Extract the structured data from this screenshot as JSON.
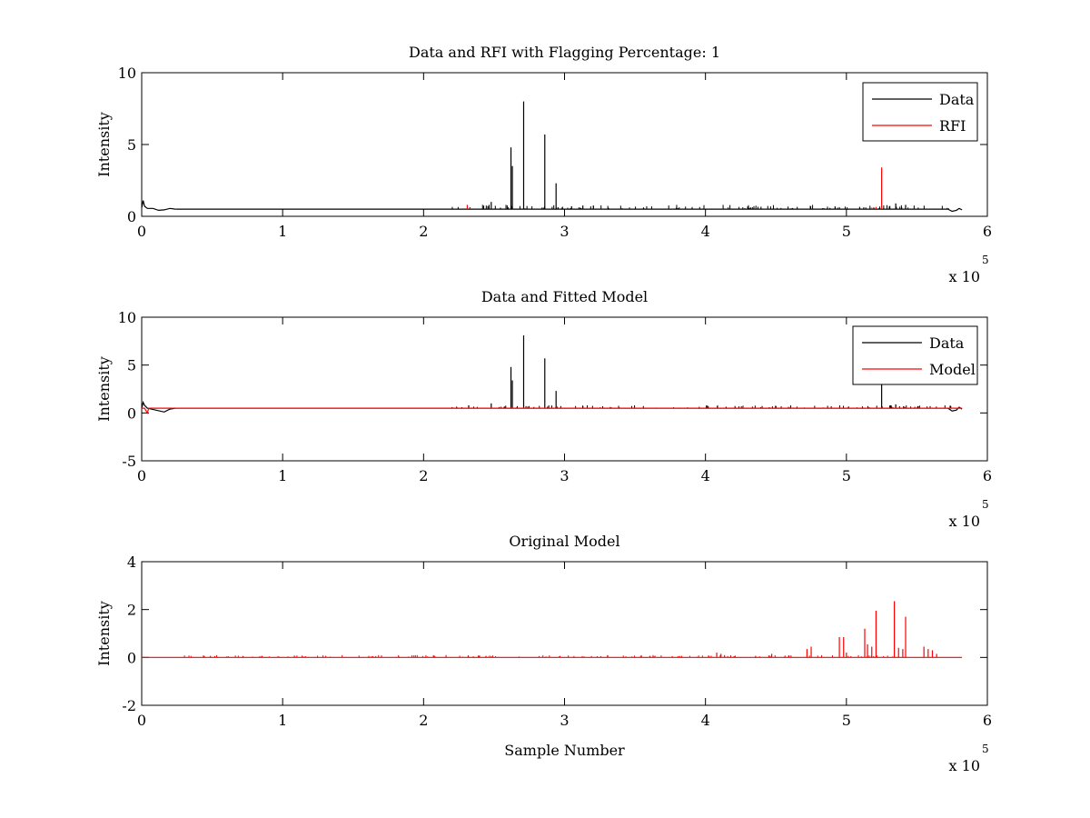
{
  "chart_data": [
    {
      "type": "line",
      "title": "Data and RFI with Flagging Percentage: 1",
      "xlabel": "",
      "ylabel": "Intensity",
      "xlim": [
        0,
        6
      ],
      "ylim": [
        0,
        10
      ],
      "xticks": [
        "0",
        "1",
        "2",
        "3",
        "4",
        "5",
        "6"
      ],
      "yticks": [
        "0",
        "5",
        "10"
      ],
      "x_multiplier": "x 10",
      "x_multiplier_exp": "5",
      "legend": {
        "position": "top-right",
        "entries": [
          {
            "label": "Data",
            "color": "#000000"
          },
          {
            "label": "RFI",
            "color": "#ff0000"
          }
        ]
      },
      "baseline": 0.5,
      "series": [
        {
          "name": "Data",
          "color": "#000000",
          "curve": [
            [
              0,
              0.6
            ],
            [
              0.01,
              1.1
            ],
            [
              0.02,
              0.7
            ],
            [
              0.04,
              0.55
            ],
            [
              0.08,
              0.55
            ],
            [
              0.12,
              0.42
            ],
            [
              0.16,
              0.45
            ],
            [
              0.2,
              0.55
            ],
            [
              0.24,
              0.5
            ]
          ],
          "tail_curve": [
            [
              5.72,
              0.5
            ],
            [
              5.75,
              0.35
            ],
            [
              5.78,
              0.42
            ],
            [
              5.8,
              0.55
            ],
            [
              5.82,
              0.45
            ]
          ],
          "spikes": [
            [
              2.48,
              1.0
            ],
            [
              2.62,
              4.8
            ],
            [
              2.63,
              3.5
            ],
            [
              2.71,
              8.0
            ],
            [
              2.86,
              5.7
            ],
            [
              2.94,
              2.3
            ],
            [
              3.05,
              0.7
            ],
            [
              3.13,
              0.75
            ],
            [
              5.35,
              0.9
            ],
            [
              5.42,
              0.8
            ]
          ]
        },
        {
          "name": "RFI",
          "color": "#ff0000",
          "spikes": [
            [
              2.31,
              0.8
            ],
            [
              2.33,
              0.6
            ],
            [
              5.18,
              0.6
            ],
            [
              5.21,
              0.65
            ],
            [
              5.25,
              3.4
            ],
            [
              5.6,
              0.55
            ]
          ]
        }
      ]
    },
    {
      "type": "line",
      "title": "Data and Fitted Model",
      "xlabel": "",
      "ylabel": "Intensity",
      "xlim": [
        0,
        6
      ],
      "ylim": [
        -5,
        10
      ],
      "xticks": [
        "0",
        "1",
        "2",
        "3",
        "4",
        "5",
        "6"
      ],
      "yticks": [
        "-5",
        "0",
        "5",
        "10"
      ],
      "x_multiplier": "x 10",
      "x_multiplier_exp": "5",
      "legend": {
        "position": "top-right",
        "entries": [
          {
            "label": "Data",
            "color": "#000000"
          },
          {
            "label": "Model",
            "color": "#ff0000"
          }
        ]
      },
      "baseline": 0.5,
      "series": [
        {
          "name": "Data",
          "color": "#000000",
          "curve": [
            [
              0,
              0.5
            ],
            [
              0.01,
              1.1
            ],
            [
              0.02,
              0.8
            ],
            [
              0.04,
              0.5
            ],
            [
              0.1,
              0.3
            ],
            [
              0.16,
              0.1
            ],
            [
              0.2,
              0.4
            ],
            [
              0.24,
              0.5
            ]
          ],
          "tail_curve": [
            [
              5.72,
              0.5
            ],
            [
              5.75,
              0.2
            ],
            [
              5.78,
              0.3
            ],
            [
              5.8,
              0.6
            ],
            [
              5.82,
              0.4
            ]
          ],
          "spikes": [
            [
              2.32,
              0.8
            ],
            [
              2.48,
              1.0
            ],
            [
              2.62,
              4.8
            ],
            [
              2.63,
              3.4
            ],
            [
              2.71,
              8.1
            ],
            [
              2.86,
              5.7
            ],
            [
              2.94,
              2.3
            ],
            [
              3.13,
              0.7
            ],
            [
              5.25,
              3.0
            ],
            [
              5.35,
              0.9
            ]
          ]
        },
        {
          "name": "Model",
          "color": "#ff0000",
          "curve": [
            [
              0,
              0.5
            ],
            [
              0.02,
              0.5
            ],
            [
              0.04,
              0.0
            ],
            [
              0.05,
              0.5
            ],
            [
              5.82,
              0.5
            ]
          ],
          "spikes": []
        }
      ]
    },
    {
      "type": "line",
      "title": "Original Model",
      "xlabel": "Sample Number",
      "ylabel": "Intensity",
      "xlim": [
        0,
        6
      ],
      "ylim": [
        -2,
        4
      ],
      "xticks": [
        "0",
        "1",
        "2",
        "3",
        "4",
        "5",
        "6"
      ],
      "yticks": [
        "-2",
        "0",
        "2",
        "4"
      ],
      "x_multiplier": "x 10",
      "x_multiplier_exp": "5",
      "baseline": 0,
      "series": [
        {
          "name": "",
          "color": "#ff0000",
          "curve": [
            [
              0,
              0
            ],
            [
              5.82,
              0
            ]
          ],
          "spikes": [
            [
              4.08,
              0.2
            ],
            [
              4.11,
              0.15
            ],
            [
              4.47,
              0.15
            ],
            [
              4.72,
              0.35
            ],
            [
              4.75,
              0.45
            ],
            [
              4.95,
              0.85
            ],
            [
              4.98,
              0.85
            ],
            [
              5.0,
              0.2
            ],
            [
              5.13,
              1.2
            ],
            [
              5.15,
              0.55
            ],
            [
              5.18,
              0.45
            ],
            [
              5.21,
              1.95
            ],
            [
              5.34,
              2.35
            ],
            [
              5.37,
              0.4
            ],
            [
              5.4,
              0.35
            ],
            [
              5.42,
              1.7
            ],
            [
              5.55,
              0.45
            ],
            [
              5.58,
              0.35
            ],
            [
              5.61,
              0.3
            ],
            [
              5.64,
              0.15
            ]
          ]
        }
      ]
    }
  ]
}
